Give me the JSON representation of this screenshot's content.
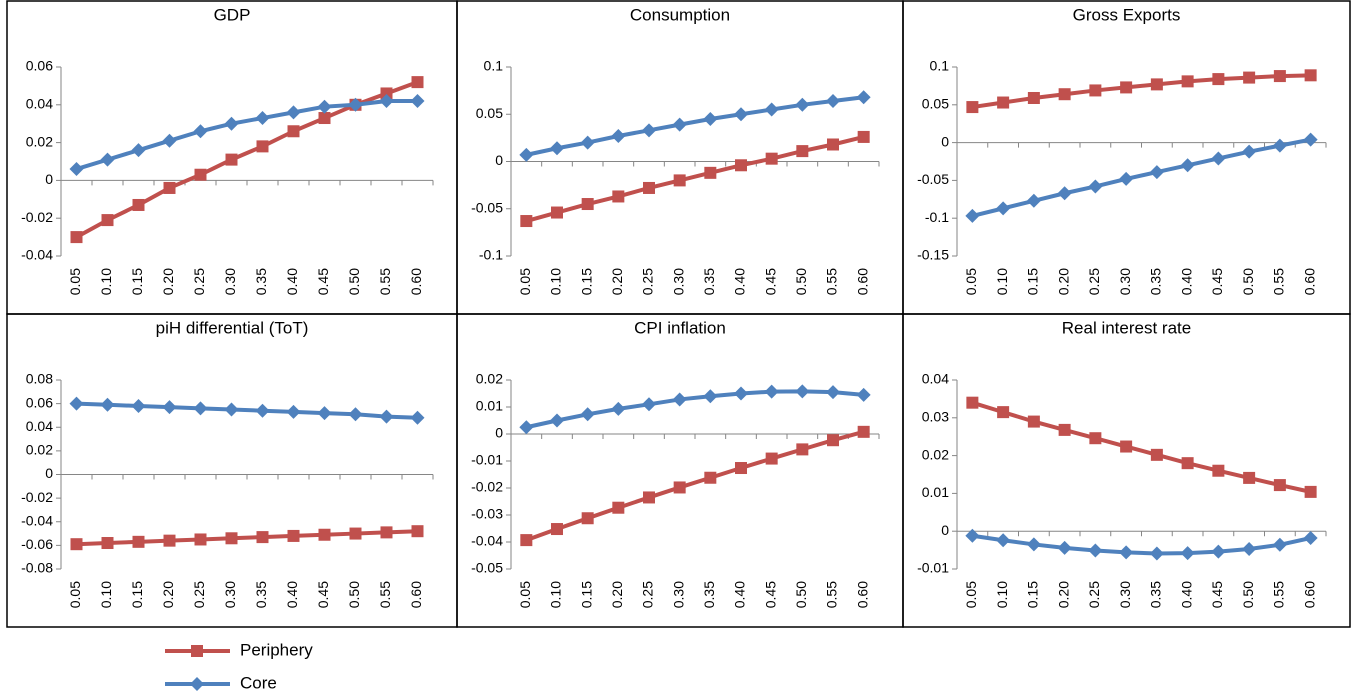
{
  "chart_data": [
    {
      "type": "line",
      "title": "GDP",
      "categories": [
        "0.05",
        "0.10",
        "0.15",
        "0.20",
        "0.25",
        "0.30",
        "0.35",
        "0.40",
        "0.45",
        "0.50",
        "0.55",
        "0.60"
      ],
      "series": [
        {
          "name": "Periphery",
          "color": "#c0504d",
          "marker": "square",
          "values": [
            -0.03,
            -0.021,
            -0.013,
            -0.004,
            0.003,
            0.011,
            0.018,
            0.026,
            0.033,
            0.04,
            0.046,
            0.052
          ]
        },
        {
          "name": "Core",
          "color": "#4f81bd",
          "marker": "diamond",
          "values": [
            0.006,
            0.011,
            0.016,
            0.021,
            0.026,
            0.03,
            0.033,
            0.036,
            0.039,
            0.04,
            0.042,
            0.042
          ]
        }
      ],
      "ylim": [
        -0.04,
        0.06
      ],
      "yticks": [
        -0.04,
        -0.02,
        0,
        0.02,
        0.04,
        0.06
      ]
    },
    {
      "type": "line",
      "title": "Consumption",
      "categories": [
        "0.05",
        "0.10",
        "0.15",
        "0.20",
        "0.25",
        "0.30",
        "0.35",
        "0.40",
        "0.45",
        "0.50",
        "0.55",
        "0.60"
      ],
      "series": [
        {
          "name": "Periphery",
          "color": "#c0504d",
          "marker": "square",
          "values": [
            -0.063,
            -0.054,
            -0.045,
            -0.037,
            -0.028,
            -0.02,
            -0.012,
            -0.004,
            0.003,
            0.011,
            0.018,
            0.026
          ]
        },
        {
          "name": "Core",
          "color": "#4f81bd",
          "marker": "diamond",
          "values": [
            0.007,
            0.014,
            0.02,
            0.027,
            0.033,
            0.039,
            0.045,
            0.05,
            0.055,
            0.06,
            0.064,
            0.068
          ]
        }
      ],
      "ylim": [
        -0.1,
        0.1
      ],
      "yticks": [
        -0.1,
        -0.05,
        0,
        0.05,
        0.1
      ]
    },
    {
      "type": "line",
      "title": "Gross Exports",
      "categories": [
        "0.05",
        "0.10",
        "0.15",
        "0.20",
        "0.25",
        "0.30",
        "0.35",
        "0.40",
        "0.45",
        "0.50",
        "0.55",
        "0.60"
      ],
      "series": [
        {
          "name": "Periphery",
          "color": "#c0504d",
          "marker": "square",
          "values": [
            0.047,
            0.053,
            0.059,
            0.064,
            0.069,
            0.073,
            0.077,
            0.081,
            0.084,
            0.086,
            0.088,
            0.089
          ]
        },
        {
          "name": "Core",
          "color": "#4f81bd",
          "marker": "diamond",
          "values": [
            -0.097,
            -0.087,
            -0.077,
            -0.067,
            -0.058,
            -0.048,
            -0.039,
            -0.03,
            -0.021,
            -0.012,
            -0.004,
            0.004
          ]
        }
      ],
      "ylim": [
        -0.15,
        0.1
      ],
      "yticks": [
        -0.15,
        -0.1,
        -0.05,
        0,
        0.05,
        0.1
      ]
    },
    {
      "type": "line",
      "title": "piH differential (ToT)",
      "categories": [
        "0.05",
        "0.10",
        "0.15",
        "0.20",
        "0.25",
        "0.30",
        "0.35",
        "0.40",
        "0.45",
        "0.50",
        "0.55",
        "0.60"
      ],
      "series": [
        {
          "name": "Periphery",
          "color": "#c0504d",
          "marker": "square",
          "values": [
            -0.059,
            -0.058,
            -0.057,
            -0.056,
            -0.055,
            -0.054,
            -0.053,
            -0.052,
            -0.051,
            -0.05,
            -0.049,
            -0.048
          ]
        },
        {
          "name": "Core",
          "color": "#4f81bd",
          "marker": "diamond",
          "values": [
            0.06,
            0.059,
            0.058,
            0.057,
            0.056,
            0.055,
            0.054,
            0.053,
            0.052,
            0.051,
            0.049,
            0.048
          ]
        }
      ],
      "ylim": [
        -0.08,
        0.08
      ],
      "yticks": [
        -0.08,
        -0.06,
        -0.04,
        -0.02,
        0,
        0.02,
        0.04,
        0.06,
        0.08
      ]
    },
    {
      "type": "line",
      "title": "CPI inflation",
      "categories": [
        "0.05",
        "0.10",
        "0.15",
        "0.20",
        "0.25",
        "0.30",
        "0.35",
        "0.40",
        "0.45",
        "0.50",
        "0.55",
        "0.60"
      ],
      "series": [
        {
          "name": "Periphery",
          "color": "#c0504d",
          "marker": "square",
          "values": [
            -0.0393,
            -0.0352,
            -0.0312,
            -0.0273,
            -0.0235,
            -0.0198,
            -0.0162,
            -0.0126,
            -0.0091,
            -0.0057,
            -0.0023,
            0.0008
          ]
        },
        {
          "name": "Core",
          "color": "#4f81bd",
          "marker": "diamond",
          "values": [
            0.0025,
            0.005,
            0.0073,
            0.0093,
            0.011,
            0.0128,
            0.014,
            0.015,
            0.0157,
            0.0158,
            0.0155,
            0.0145
          ]
        }
      ],
      "ylim": [
        -0.05,
        0.02
      ],
      "yticks": [
        -0.05,
        -0.04,
        -0.03,
        -0.02,
        -0.01,
        0,
        0.01,
        0.02
      ]
    },
    {
      "type": "line",
      "title": "Real interest rate",
      "categories": [
        "0.05",
        "0.10",
        "0.15",
        "0.20",
        "0.25",
        "0.30",
        "0.35",
        "0.40",
        "0.45",
        "0.50",
        "0.55",
        "0.60"
      ],
      "series": [
        {
          "name": "Periphery",
          "color": "#c0504d",
          "marker": "square",
          "values": [
            0.034,
            0.0315,
            0.029,
            0.0268,
            0.0246,
            0.0224,
            0.0202,
            0.018,
            0.016,
            0.0141,
            0.0122,
            0.0104
          ]
        },
        {
          "name": "Core",
          "color": "#4f81bd",
          "marker": "diamond",
          "values": [
            -0.0012,
            -0.0024,
            -0.0035,
            -0.0044,
            -0.0051,
            -0.0056,
            -0.0059,
            -0.0058,
            -0.0054,
            -0.0047,
            -0.0036,
            -0.0018
          ]
        }
      ],
      "ylim": [
        -0.01,
        0.04
      ],
      "yticks": [
        -0.01,
        0,
        0.01,
        0.02,
        0.03,
        0.04
      ]
    }
  ]
}
